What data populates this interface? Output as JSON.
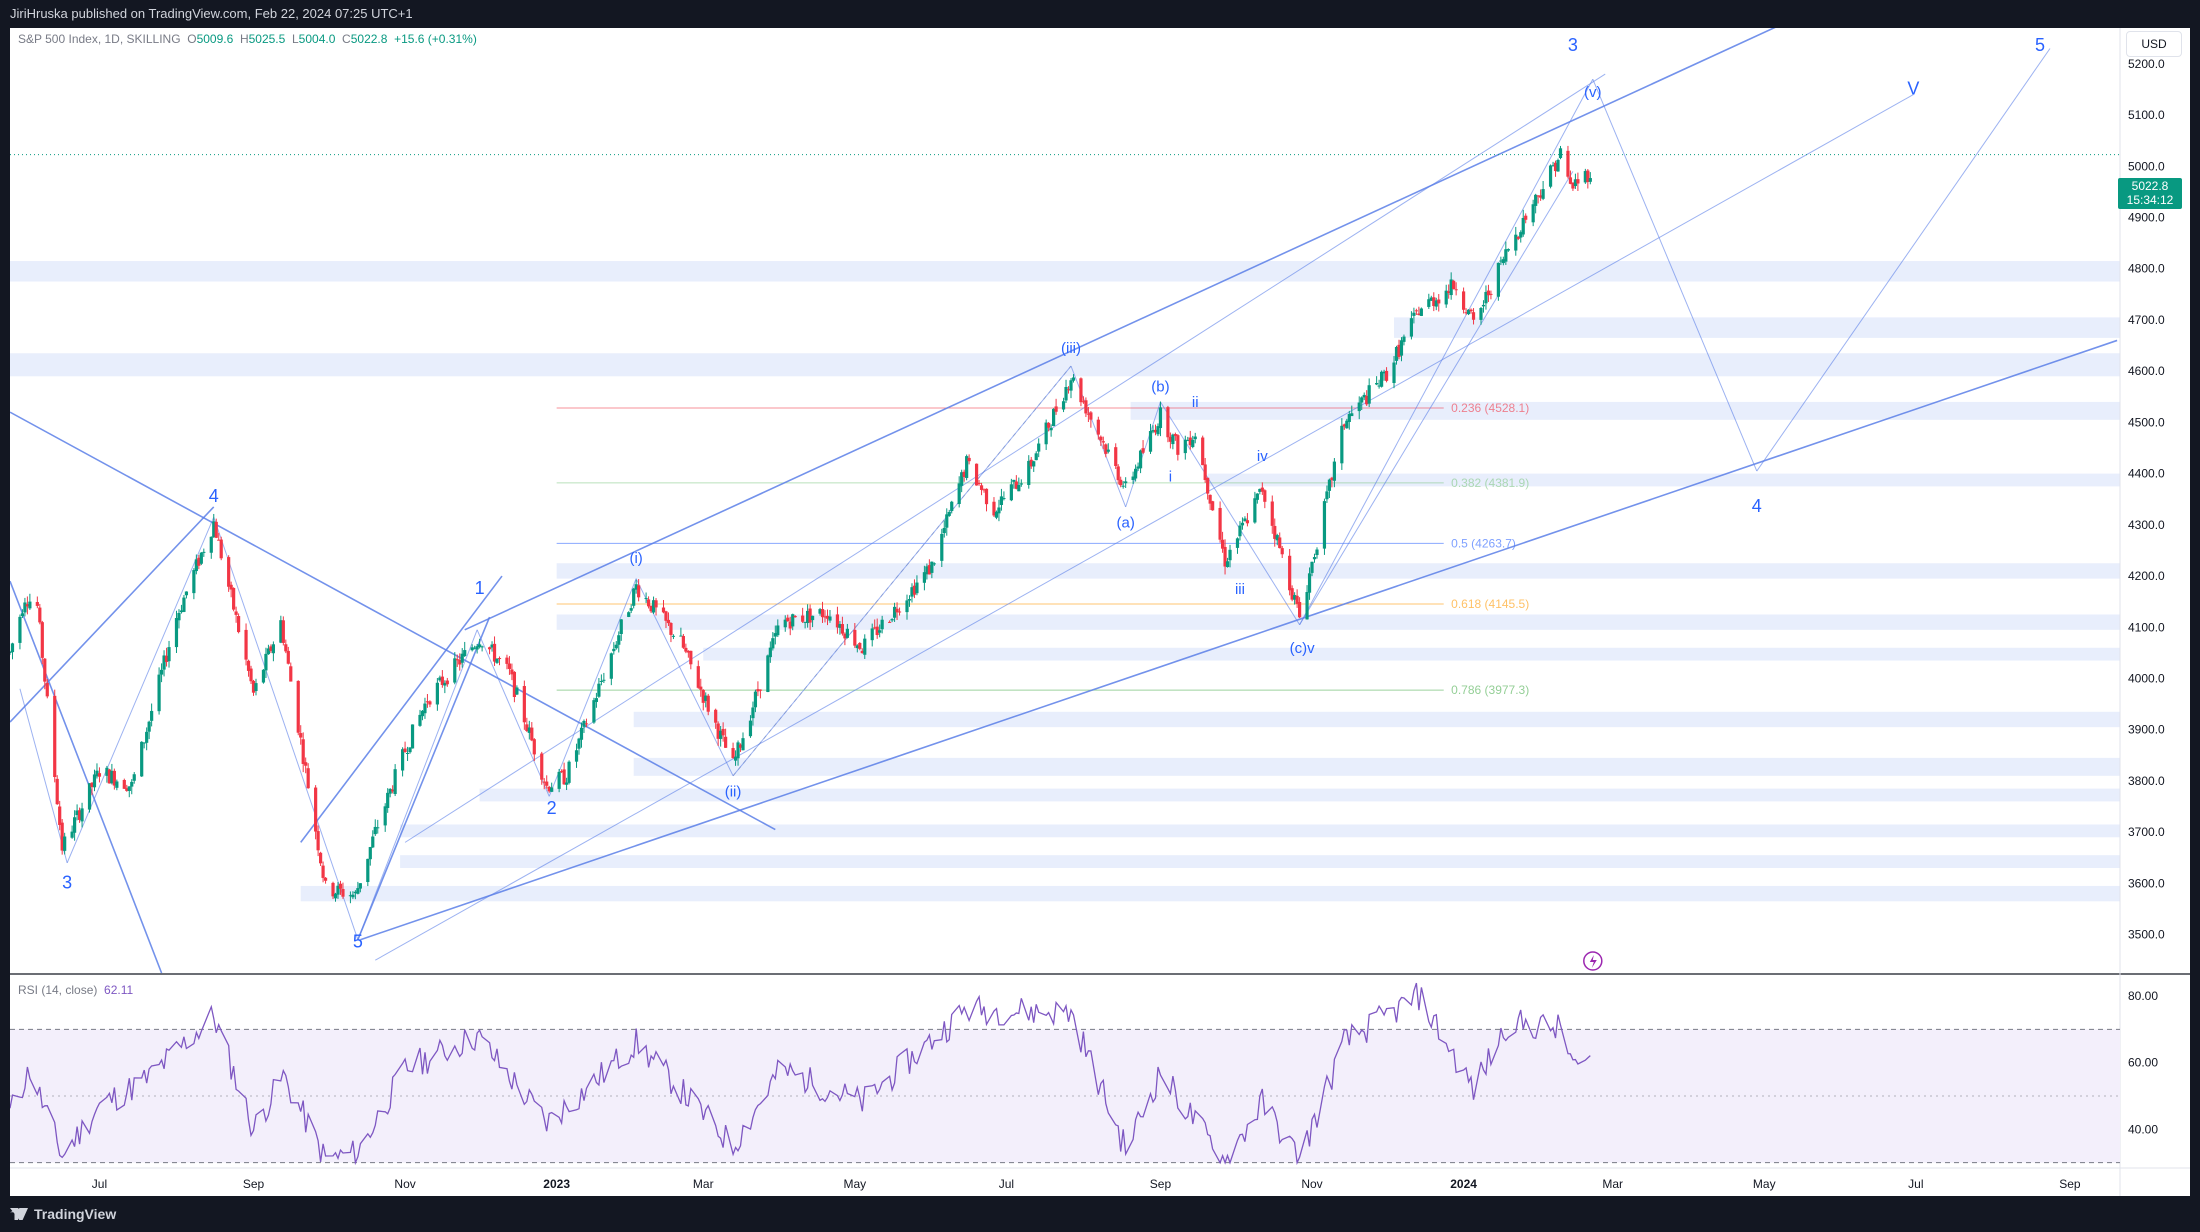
{
  "header": {
    "publisher": "JiriHruska published on TradingView.com, Feb 22, 2024 07:25 UTC+1"
  },
  "footer": {
    "brand": "TradingView"
  },
  "legend": {
    "symbol": "S&P 500 Index, 1D, SKILLING",
    "open_label": "O",
    "open": "5009.6",
    "high_label": "H",
    "high": "5025.5",
    "low_label": "L",
    "low": "5004.0",
    "close_label": "C",
    "close": "5022.8",
    "change": "+15.6 (+0.31%)"
  },
  "currency": "USD",
  "price_tag": {
    "price": "5022.8",
    "countdown": "15:34:12"
  },
  "rsi_legend": {
    "label": "RSI (14, close)",
    "value": "62.11"
  },
  "colors": {
    "up": "#089981",
    "down": "#f23645",
    "wave": "#2962ff",
    "zone": "#e8eefc",
    "rsi": "#7e57c2"
  },
  "chart_data": {
    "type": "candlestick",
    "y_ticks": [
      3500,
      3600,
      3700,
      3800,
      3900,
      4000,
      4100,
      4200,
      4300,
      4400,
      4500,
      4600,
      4700,
      4800,
      4900,
      5000,
      5100,
      5200
    ],
    "ylim": [
      3425,
      5270
    ],
    "x_ticks": [
      "Jul",
      "Sep",
      "Nov",
      "2023",
      "Mar",
      "May",
      "Jul",
      "Sep",
      "Nov",
      "2024",
      "Mar",
      "May",
      "Jul",
      "Sep"
    ],
    "x_tick_dates": [
      "2022-07-01",
      "2022-09-01",
      "2022-11-01",
      "2023-01-01",
      "2023-03-01",
      "2023-05-01",
      "2023-07-01",
      "2023-09-01",
      "2023-11-01",
      "2024-01-01",
      "2024-03-01",
      "2024-05-01",
      "2024-07-01",
      "2024-09-01"
    ],
    "price_path": [
      [
        "2022-05-26",
        4050
      ],
      [
        "2022-06-01",
        4160
      ],
      [
        "2022-06-06",
        4140
      ],
      [
        "2022-06-16",
        3670
      ],
      [
        "2022-07-01",
        3820
      ],
      [
        "2022-07-14",
        3790
      ],
      [
        "2022-08-01",
        4120
      ],
      [
        "2022-08-16",
        4305
      ],
      [
        "2022-09-01",
        3970
      ],
      [
        "2022-09-12",
        4110
      ],
      [
        "2022-09-30",
        3590
      ],
      [
        "2022-10-12",
        3577
      ],
      [
        "2022-10-20",
        3700
      ],
      [
        "2022-11-01",
        3860
      ],
      [
        "2022-11-10",
        3960
      ],
      [
        "2022-12-01",
        4080
      ],
      [
        "2022-12-13",
        4010
      ],
      [
        "2022-12-28",
        3790
      ],
      [
        "2023-01-05",
        3810
      ],
      [
        "2023-02-02",
        4180
      ],
      [
        "2023-02-20",
        4070
      ],
      [
        "2023-03-13",
        3830
      ],
      [
        "2023-04-01",
        4110
      ],
      [
        "2023-04-20",
        4130
      ],
      [
        "2023-05-04",
        4060
      ],
      [
        "2023-06-01",
        4220
      ],
      [
        "2023-06-15",
        4420
      ],
      [
        "2023-06-26",
        4330
      ],
      [
        "2023-07-10",
        4410
      ],
      [
        "2023-07-27",
        4590
      ],
      [
        "2023-08-18",
        4370
      ],
      [
        "2023-09-01",
        4515
      ],
      [
        "2023-09-08",
        4450
      ],
      [
        "2023-09-15",
        4480
      ],
      [
        "2023-09-27",
        4230
      ],
      [
        "2023-10-12",
        4370
      ],
      [
        "2023-10-27",
        4120
      ],
      [
        "2023-11-14",
        4500
      ],
      [
        "2023-12-01",
        4595
      ],
      [
        "2023-12-14",
        4720
      ],
      [
        "2023-12-29",
        4770
      ],
      [
        "2024-01-05",
        4690
      ],
      [
        "2024-01-19",
        4840
      ],
      [
        "2024-02-09",
        5025
      ],
      [
        "2024-02-13",
        4960
      ],
      [
        "2024-02-21",
        4990
      ]
    ],
    "fib_levels": [
      {
        "ratio": "0.236",
        "price": 4528.1,
        "label": "0.236 (4528.1)",
        "color": "#f23645"
      },
      {
        "ratio": "0.382",
        "price": 4381.9,
        "label": "0.382 (4381.9)",
        "color": "#81c784"
      },
      {
        "ratio": "0.5",
        "price": 4263.7,
        "label": "0.5 (4263.7)",
        "color": "#2962ff"
      },
      {
        "ratio": "0.618",
        "price": 4145.5,
        "label": "0.618 (4145.5)",
        "color": "#ff9800"
      },
      {
        "ratio": "0.786",
        "price": 3977.3,
        "label": "0.786 (3977.3)",
        "color": "#4caf50"
      }
    ],
    "zones": [
      {
        "from_date": "2022-05-26",
        "low": 4775,
        "high": 4815
      },
      {
        "from_date": "2023-12-04",
        "low": 4665,
        "high": 4705
      },
      {
        "from_date": "2022-05-26",
        "low": 4590,
        "high": 4635
      },
      {
        "from_date": "2023-08-20",
        "low": 4505,
        "high": 4540
      },
      {
        "from_date": "2023-09-20",
        "low": 4375,
        "high": 4400
      },
      {
        "from_date": "2023-01-01",
        "low": 4195,
        "high": 4225
      },
      {
        "from_date": "2023-01-01",
        "low": 4095,
        "high": 4125
      },
      {
        "from_date": "2023-03-01",
        "low": 4035,
        "high": 4060
      },
      {
        "from_date": "2023-02-01",
        "low": 3905,
        "high": 3935
      },
      {
        "from_date": "2023-02-01",
        "low": 3810,
        "high": 3845
      },
      {
        "from_date": "2022-12-01",
        "low": 3760,
        "high": 3785
      },
      {
        "from_date": "2022-10-30",
        "low": 3690,
        "high": 3715
      },
      {
        "from_date": "2022-10-30",
        "low": 3630,
        "high": 3655
      },
      {
        "from_date": "2022-09-20",
        "low": 3565,
        "high": 3595
      }
    ],
    "wave_labels": [
      {
        "text": "3",
        "date": "2022-06-18",
        "price": 3590,
        "size": "lg"
      },
      {
        "text": "4",
        "date": "2022-08-16",
        "price": 4345,
        "size": "lg"
      },
      {
        "text": "5",
        "date": "2022-10-13",
        "price": 3475,
        "size": "lg"
      },
      {
        "text": "1",
        "date": "2022-12-01",
        "price": 4165,
        "size": "lg"
      },
      {
        "text": "2",
        "date": "2022-12-30",
        "price": 3735,
        "size": "lg"
      },
      {
        "text": "(i)",
        "date": "2023-02-02",
        "price": 4225,
        "size": "sm"
      },
      {
        "text": "(ii)",
        "date": "2023-03-13",
        "price": 3770,
        "size": "sm"
      },
      {
        "text": "(iii)",
        "date": "2023-07-27",
        "price": 4635,
        "size": "sm"
      },
      {
        "text": "(a)",
        "date": "2023-08-18",
        "price": 4295,
        "size": "sm"
      },
      {
        "text": "(b)",
        "date": "2023-09-01",
        "price": 4560,
        "size": "sm"
      },
      {
        "text": "i",
        "date": "2023-09-05",
        "price": 4385,
        "size": "sm"
      },
      {
        "text": "ii",
        "date": "2023-09-15",
        "price": 4530,
        "size": "sm"
      },
      {
        "text": "iii",
        "date": "2023-10-03",
        "price": 4165,
        "size": "sm"
      },
      {
        "text": "iv",
        "date": "2023-10-12",
        "price": 4425,
        "size": "sm"
      },
      {
        "text": "(c)v",
        "date": "2023-10-28",
        "price": 4050,
        "size": "sm"
      },
      {
        "text": "3",
        "date": "2024-02-14",
        "price": 5225,
        "size": "lg"
      },
      {
        "text": "(v)",
        "date": "2024-02-22",
        "price": 5135,
        "size": "sm"
      },
      {
        "text": "4",
        "date": "2024-04-28",
        "price": 4325,
        "size": "lg"
      },
      {
        "text": "V",
        "date": "2024-06-30",
        "price": 5140,
        "size": "lg"
      },
      {
        "text": "5",
        "date": "2024-08-20",
        "price": 5225,
        "size": "lg"
      }
    ],
    "lines": [
      {
        "from": [
          "2022-05-26",
          4520
        ],
        "to": [
          "2023-03-30",
          3705
        ],
        "w": 2
      },
      {
        "from": [
          "2022-05-26",
          4190
        ],
        "to": [
          "2022-07-26",
          3425
        ],
        "w": 2
      },
      {
        "from": [
          "2022-10-14",
          3490
        ],
        "to": [
          "2024-09-20",
          4660
        ],
        "w": 2
      },
      {
        "from": [
          "2022-11-25",
          4095
        ],
        "to": [
          "2024-05-25",
          5315
        ],
        "w": 2
      },
      {
        "from": [
          "2022-05-26",
          3915
        ],
        "to": [
          "2022-08-16",
          4335
        ],
        "w": 2
      },
      {
        "from": [
          "2022-09-20",
          3680
        ],
        "to": [
          "2022-12-10",
          4200
        ],
        "w": 2
      },
      {
        "from": [
          "2022-10-13",
          3490
        ],
        "to": [
          "2022-12-05",
          4120
        ],
        "w": 2
      },
      {
        "from": [
          "2022-05-30",
          3980
        ],
        "to": [
          "2022-06-18",
          3640
        ],
        "w": 1
      },
      {
        "from": [
          "2022-06-18",
          3640
        ],
        "to": [
          "2022-08-16",
          4315
        ],
        "w": 1
      },
      {
        "from": [
          "2022-08-16",
          4315
        ],
        "to": [
          "2022-10-13",
          3490
        ],
        "w": 1
      },
      {
        "from": [
          "2022-10-13",
          3490
        ],
        "to": [
          "2022-11-30",
          4095
        ],
        "w": 1
      },
      {
        "from": [
          "2022-11-30",
          4095
        ],
        "to": [
          "2022-12-29",
          3770
        ],
        "w": 1
      },
      {
        "from": [
          "2022-12-29",
          3770
        ],
        "to": [
          "2023-02-02",
          4195
        ],
        "w": 1
      },
      {
        "from": [
          "2023-02-02",
          4195
        ],
        "to": [
          "2023-03-13",
          3810
        ],
        "w": 1
      },
      {
        "from": [
          "2023-03-13",
          3810
        ],
        "to": [
          "2023-07-27",
          4610
        ],
        "w": 1
      },
      {
        "from": [
          "2023-07-27",
          4610
        ],
        "to": [
          "2023-08-18",
          4335
        ],
        "w": 1
      },
      {
        "from": [
          "2023-08-18",
          4335
        ],
        "to": [
          "2023-09-01",
          4540
        ],
        "w": 1
      },
      {
        "from": [
          "2023-09-01",
          4540
        ],
        "to": [
          "2023-10-27",
          4105
        ],
        "w": 1
      },
      {
        "from": [
          "2023-10-27",
          4105
        ],
        "to": [
          "2024-02-22",
          5170
        ],
        "w": 1
      },
      {
        "from": [
          "2024-02-22",
          5170
        ],
        "to": [
          "2024-04-28",
          4405
        ],
        "w": 1
      },
      {
        "from": [
          "2024-04-28",
          4405
        ],
        "to": [
          "2024-08-24",
          5230
        ],
        "w": 1
      },
      {
        "from": [
          "2022-11-01",
          3680
        ],
        "to": [
          "2024-02-27",
          5180
        ],
        "w": 1
      },
      {
        "from": [
          "2022-10-20",
          3450
        ],
        "to": [
          "2024-06-30",
          5140
        ],
        "w": 1
      },
      {
        "from": [
          "2023-10-27",
          4105
        ],
        "to": [
          "2024-02-14",
          4990
        ],
        "w": 1
      }
    ],
    "rsi": {
      "ticks": [
        40,
        60,
        80
      ],
      "ylim": [
        29,
        86
      ],
      "upper": 70,
      "mid": 50,
      "lower": 30,
      "path": [
        [
          "2022-05-26",
          45
        ],
        [
          "2022-06-03",
          58
        ],
        [
          "2022-06-16",
          32
        ],
        [
          "2022-07-01",
          47
        ],
        [
          "2022-07-20",
          55
        ],
        [
          "2022-08-16",
          74
        ],
        [
          "2022-09-01",
          40
        ],
        [
          "2022-09-13",
          56
        ],
        [
          "2022-09-30",
          31
        ],
        [
          "2022-10-13",
          33
        ],
        [
          "2022-11-01",
          58
        ],
        [
          "2022-11-30",
          68
        ],
        [
          "2022-12-28",
          42
        ],
        [
          "2023-01-10",
          50
        ],
        [
          "2023-02-02",
          66
        ],
        [
          "2023-03-13",
          35
        ],
        [
          "2023-04-01",
          58
        ],
        [
          "2023-05-04",
          48
        ],
        [
          "2023-06-15",
          76
        ],
        [
          "2023-07-27",
          75
        ],
        [
          "2023-08-18",
          34
        ],
        [
          "2023-09-01",
          57
        ],
        [
          "2023-09-27",
          30
        ],
        [
          "2023-10-12",
          48
        ],
        [
          "2023-10-27",
          31
        ],
        [
          "2023-11-14",
          66
        ],
        [
          "2023-12-14",
          80
        ],
        [
          "2024-01-05",
          52
        ],
        [
          "2024-01-19",
          72
        ],
        [
          "2024-02-09",
          70
        ],
        [
          "2024-02-15",
          58
        ],
        [
          "2024-02-21",
          62.11
        ]
      ]
    }
  }
}
